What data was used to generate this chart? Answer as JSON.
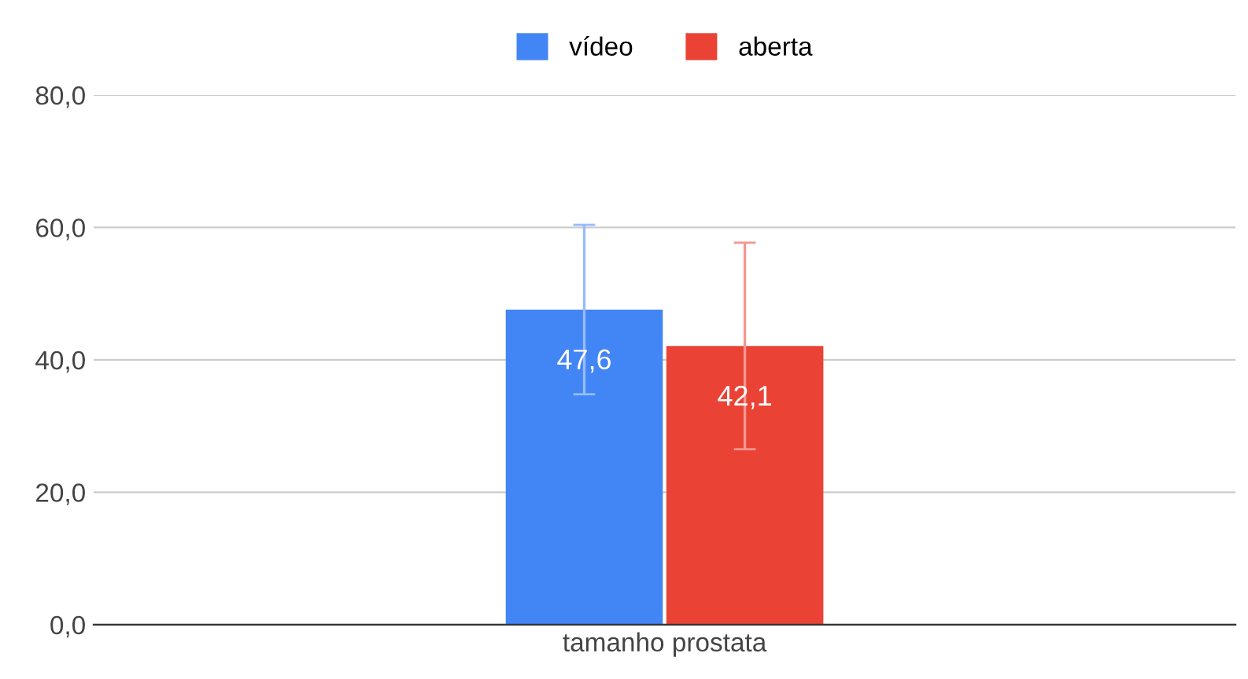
{
  "chart_data": {
    "type": "bar",
    "categories": [
      "tamanho prostata"
    ],
    "series": [
      {
        "name": "vídeo",
        "color": "#4285f4",
        "values": [
          47.6
        ],
        "errors": [
          12.8
        ],
        "value_labels": [
          "47,6"
        ]
      },
      {
        "name": "aberta",
        "color": "#ea4335",
        "values": [
          42.1
        ],
        "errors": [
          15.6
        ],
        "value_labels": [
          "42,1"
        ]
      }
    ],
    "ylim": [
      0,
      80
    ],
    "yticks": [
      {
        "value": 0,
        "label": "0,0"
      },
      {
        "value": 20,
        "label": "20,0"
      },
      {
        "value": 40,
        "label": "40,0"
      },
      {
        "value": 60,
        "label": "60,0"
      },
      {
        "value": 80,
        "label": "80,0"
      }
    ],
    "grid": "y",
    "legend": "top"
  }
}
